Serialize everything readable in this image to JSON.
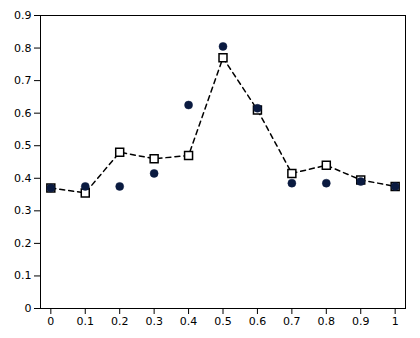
{
  "chart_data": {
    "type": "line",
    "x": [
      0.0,
      0.1,
      0.2,
      0.3,
      0.4,
      0.5,
      0.6,
      0.7,
      0.8,
      0.9,
      1.0
    ],
    "series": [
      {
        "type": "line",
        "color": "#000000",
        "marker": "square",
        "line_style": "dashed",
        "values": [
          0.37,
          0.355,
          0.48,
          0.46,
          0.47,
          0.77,
          0.61,
          0.415,
          0.44,
          0.395,
          0.375
        ]
      },
      {
        "type": "scatter",
        "color": "#0a1a40",
        "marker": "circle",
        "line_style": "none",
        "values": [
          0.37,
          0.375,
          0.375,
          0.415,
          0.625,
          0.805,
          0.615,
          0.385,
          0.385,
          0.39,
          0.375
        ]
      }
    ],
    "xlim": [
      -0.03,
      1.03
    ],
    "ylim": [
      0,
      0.9
    ],
    "xticks": [
      0,
      0.1,
      0.2,
      0.3,
      0.4,
      0.5,
      0.6,
      0.7,
      0.8,
      0.9,
      1
    ],
    "yticks": [
      0,
      0.1,
      0.2,
      0.3,
      0.4,
      0.5,
      0.6,
      0.7,
      0.8,
      0.9
    ],
    "grid": false
  }
}
